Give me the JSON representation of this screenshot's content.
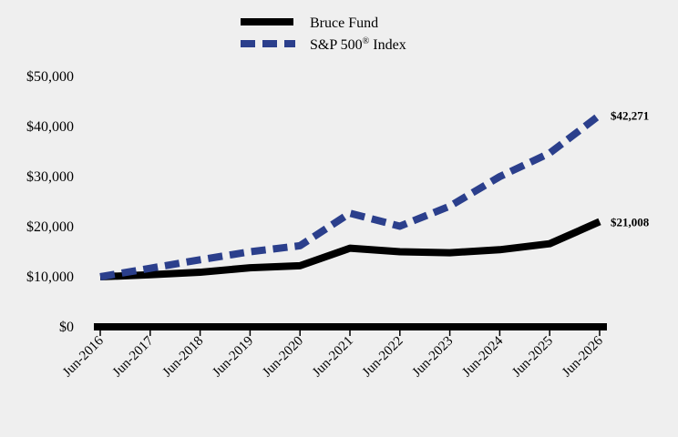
{
  "chart_data": {
    "type": "line",
    "title": "",
    "xlabel": "",
    "ylabel": "",
    "categories": [
      "Jun-2016",
      "Jun-2017",
      "Jun-2018",
      "Jun-2019",
      "Jun-2020",
      "Jun-2021",
      "Jun-2022",
      "Jun-2023",
      "Jun-2024",
      "Jun-2025",
      "Jun-2026"
    ],
    "yticks": [
      "$0",
      "$10,000",
      "$20,000",
      "$30,000",
      "$40,000",
      "$50,000"
    ],
    "ylim": [
      0,
      50000
    ],
    "grid": false,
    "legend_position": "top",
    "series": [
      {
        "name": "Bruce Fund",
        "color": "#000000",
        "style": "solid",
        "values": [
          10000,
          10400,
          10900,
          11800,
          12200,
          15700,
          15000,
          14800,
          15400,
          16600,
          21008
        ],
        "end_label": "$21,008"
      },
      {
        "name": "S&P 500",
        "name_sup": "®",
        "name_suffix": " Index",
        "color": "#2b3f8c",
        "style": "dashed",
        "values": [
          10000,
          11700,
          13400,
          15000,
          16200,
          22700,
          20100,
          24100,
          30000,
          34700,
          42271
        ],
        "end_label": "$42,271"
      }
    ]
  }
}
